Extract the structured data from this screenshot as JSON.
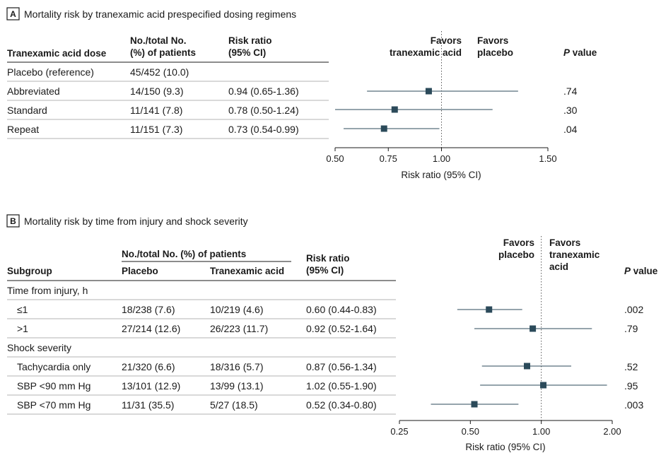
{
  "panel_a": {
    "letter": "A",
    "title": "Mortality risk by tranexamic acid prespecified dosing regimens",
    "headers": {
      "dose": "Tranexamic acid dose",
      "n_line1": "No./total No.",
      "n_line2": "(%) of patients",
      "rr_line1": "Risk ratio",
      "rr_line2": "(95% CI)",
      "favors_left_1": "Favors",
      "favors_left_2": "tranexamic acid",
      "favors_right_1": "Favors",
      "favors_right_2": "placebo",
      "p_italic": "P",
      "p_rest": " value"
    },
    "rows": [
      {
        "label": "Placebo (reference)",
        "n": "45/452 (10.0)",
        "rr": "",
        "p": ""
      },
      {
        "label": "Abbreviated",
        "n": "14/150 (9.3)",
        "rr": "0.94 (0.65-1.36)",
        "p": ".74"
      },
      {
        "label": "Standard",
        "n": "11/141 (7.8)",
        "rr": "0.78 (0.50-1.24)",
        "p": ".30"
      },
      {
        "label": "Repeat",
        "n": "11/151 (7.3)",
        "rr": "0.73 (0.54-0.99)",
        "p": ".04"
      }
    ],
    "axis_label": "Risk ratio (95% CI)"
  },
  "panel_b": {
    "letter": "B",
    "title": "Mortality risk by time from injury and shock severity",
    "headers": {
      "subgroup": "Subgroup",
      "span": "No./total No. (%) of patients",
      "placebo": "Placebo",
      "txa": "Tranexamic acid",
      "rr_line1": "Risk ratio",
      "rr_line2": "(95% CI)",
      "favors_left_1": "Favors",
      "favors_left_2": "placebo",
      "favors_right_1": "Favors",
      "favors_right_2": "tranexamic",
      "favors_right_3": "acid",
      "p_italic": "P",
      "p_rest": " value"
    },
    "groups": [
      {
        "label": "Time from injury, h"
      },
      {
        "label": "Shock severity"
      }
    ],
    "rows": [
      {
        "label": "≤1",
        "placebo": "18/238 (7.6)",
        "txa": "10/219 (4.6)",
        "rr": "0.60 (0.44-0.83)",
        "p": ".002"
      },
      {
        "label": ">1",
        "placebo": "27/214 (12.6)",
        "txa": "26/223 (11.7)",
        "rr": "0.92 (0.52-1.64)",
        "p": ".79"
      },
      {
        "label": "Tachycardia only",
        "placebo": "21/320 (6.6)",
        "txa": "18/316 (5.7)",
        "rr": "0.87 (0.56-1.34)",
        "p": ".52"
      },
      {
        "label": "SBP <90 mm Hg",
        "placebo": "13/101 (12.9)",
        "txa": "13/99 (13.1)",
        "rr": "1.02 (0.55-1.90)",
        "p": ".95"
      },
      {
        "label": "SBP <70 mm Hg",
        "placebo": "11/31 (35.5)",
        "txa": "5/27 (18.5)",
        "rr": "0.52 (0.34-0.80)",
        "p": ".003"
      }
    ],
    "axis_label": "Risk ratio (95% CI)"
  },
  "chart_data": [
    {
      "type": "forest",
      "title": "Mortality risk by tranexamic acid prespecified dosing regimens",
      "xlabel": "Risk ratio (95% CI)",
      "xscale": "linear",
      "xlim": [
        0.5,
        1.5
      ],
      "xticks": [
        0.5,
        0.75,
        1.0,
        1.5
      ],
      "xtick_labels": [
        "0.50",
        "0.75",
        "1.00",
        "1.50"
      ],
      "reference_line": 1.0,
      "marker_color": "#2b4a5a",
      "points": [
        {
          "category": "Abbreviated",
          "estimate": 0.94,
          "lower": 0.65,
          "upper": 1.36
        },
        {
          "category": "Standard",
          "estimate": 0.78,
          "lower": 0.5,
          "upper": 1.24
        },
        {
          "category": "Repeat",
          "estimate": 0.73,
          "lower": 0.54,
          "upper": 0.99
        }
      ]
    },
    {
      "type": "forest",
      "title": "Mortality risk by time from injury and shock severity",
      "xlabel": "Risk ratio (95% CI)",
      "xscale": "log",
      "xlim": [
        0.25,
        2.0
      ],
      "xticks": [
        0.25,
        0.5,
        1.0,
        2.0
      ],
      "xtick_labels": [
        "0.25",
        "0.50",
        "1.00",
        "2.00"
      ],
      "reference_line": 1.0,
      "marker_color": "#2b4a5a",
      "points": [
        {
          "category": "≤1",
          "estimate": 0.6,
          "lower": 0.44,
          "upper": 0.83
        },
        {
          "category": ">1",
          "estimate": 0.92,
          "lower": 0.52,
          "upper": 1.64
        },
        {
          "category": "Tachycardia only",
          "estimate": 0.87,
          "lower": 0.56,
          "upper": 1.34
        },
        {
          "category": "SBP <90 mm Hg",
          "estimate": 1.02,
          "lower": 0.55,
          "upper": 1.9
        },
        {
          "category": "SBP <70 mm Hg",
          "estimate": 0.52,
          "lower": 0.34,
          "upper": 0.8
        }
      ]
    }
  ]
}
